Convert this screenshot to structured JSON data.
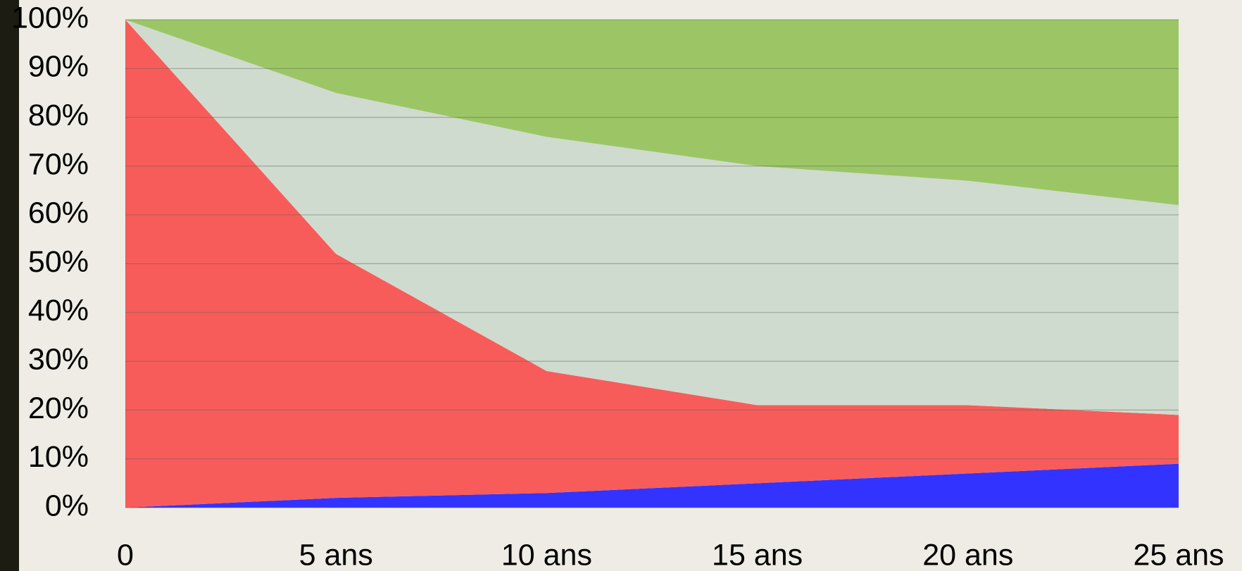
{
  "chart_data": {
    "type": "stacked_area",
    "categories": [
      "0",
      "5 ans",
      "10 ans",
      "15 ans",
      "20 ans",
      "25 ans"
    ],
    "series": [
      {
        "color": "#3333ff",
        "values": [
          0,
          2,
          3,
          5,
          7,
          9
        ]
      },
      {
        "color": "#f75c5a",
        "values": [
          100,
          50,
          25,
          16,
          14,
          10
        ]
      },
      {
        "color": "#cfdbce",
        "values": [
          0,
          33,
          48,
          49,
          46,
          43
        ]
      },
      {
        "color": "#9cc666",
        "values": [
          0,
          15,
          24,
          30,
          33,
          38
        ]
      }
    ],
    "ylim": [
      0,
      100
    ],
    "yticks": [
      {
        "value": 0,
        "label": "0%"
      },
      {
        "value": 10,
        "label": "10%"
      },
      {
        "value": 20,
        "label": "20%"
      },
      {
        "value": 30,
        "label": "30%"
      },
      {
        "value": 40,
        "label": "40%"
      },
      {
        "value": 50,
        "label": "50%"
      },
      {
        "value": 60,
        "label": "60%"
      },
      {
        "value": 70,
        "label": "70%"
      },
      {
        "value": 80,
        "label": "80%"
      },
      {
        "value": 90,
        "label": "90%"
      },
      {
        "value": 100,
        "label": "100%"
      }
    ],
    "grid": true
  }
}
